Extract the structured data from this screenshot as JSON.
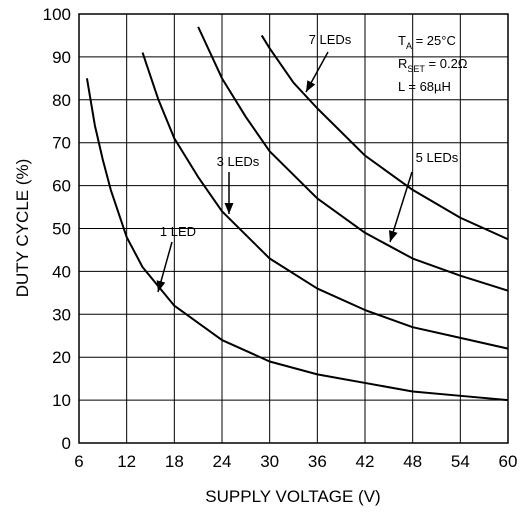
{
  "chart_data": {
    "type": "line",
    "xlabel": "SUPPLY VOLTAGE (V)",
    "ylabel": "DUTY CYCLE (%)",
    "xlim": [
      6,
      60
    ],
    "xticks": [
      6,
      12,
      18,
      24,
      30,
      36,
      42,
      48,
      54,
      60
    ],
    "ylim": [
      0,
      100
    ],
    "yticks": [
      0,
      10,
      20,
      30,
      40,
      50,
      60,
      70,
      80,
      90,
      100
    ],
    "grid": true,
    "series": [
      {
        "name": "1 LED",
        "color": "#000000",
        "x": [
          7,
          8,
          9,
          10,
          12,
          14,
          18,
          24,
          30,
          36,
          42,
          48,
          54,
          60
        ],
        "values": [
          85,
          74,
          66,
          59,
          48,
          41,
          32,
          24,
          19,
          16,
          14,
          12,
          11,
          10
        ]
      },
      {
        "name": "3 LEDs",
        "color": "#000000",
        "x": [
          14,
          16,
          18,
          21,
          24,
          30,
          36,
          42,
          48,
          54,
          60
        ],
        "values": [
          91,
          80,
          71,
          62,
          54,
          43,
          36,
          31,
          27,
          24.5,
          22
        ]
      },
      {
        "name": "5 LEDs",
        "color": "#000000",
        "x": [
          21,
          24,
          27,
          30,
          36,
          42,
          48,
          54,
          60
        ],
        "values": [
          97,
          85,
          76,
          68,
          57,
          49,
          43,
          39,
          35.5
        ]
      },
      {
        "name": "7 LEDs",
        "color": "#000000",
        "x": [
          29,
          30,
          33,
          36,
          42,
          48,
          54,
          60
        ],
        "values": [
          95,
          92,
          84,
          78,
          67,
          59,
          52.5,
          47.5
        ]
      }
    ],
    "conditions": [
      {
        "main": "T",
        "sub": "A",
        "rest": " = 25°C"
      },
      {
        "main": "R",
        "sub": "SET",
        "rest": " = 0.2Ω"
      },
      {
        "main": "L = 68µH"
      }
    ]
  }
}
